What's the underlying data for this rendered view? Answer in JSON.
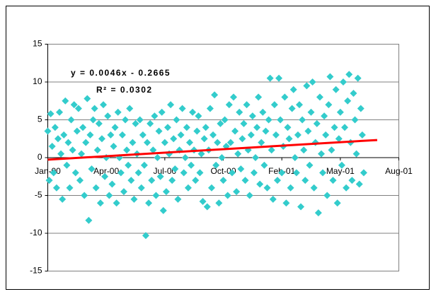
{
  "chart_data": {
    "type": "scatter",
    "equation": "y = 0.0046x - 0.2665",
    "r_squared": "R² = 0.0302",
    "xlim": [
      0,
      600
    ],
    "xticks": [
      {
        "value": 0,
        "label": "Jan-00"
      },
      {
        "value": 100,
        "label": "Apr-00"
      },
      {
        "value": 200,
        "label": "Jul-00"
      },
      {
        "value": 300,
        "label": "Oct-00"
      },
      {
        "value": 400,
        "label": "Feb-01"
      },
      {
        "value": 500,
        "label": "May-01"
      },
      {
        "value": 600,
        "label": "Aug-01"
      }
    ],
    "ylim": [
      -15,
      15
    ],
    "yticks": [
      -15,
      -10,
      -5,
      0,
      5,
      10,
      15
    ],
    "grid": true,
    "color": "#33cccc",
    "x": [
      0,
      2.5,
      5,
      7.5,
      10,
      12.5,
      15,
      17.5,
      20,
      22.5,
      25,
      27.5,
      30,
      32.5,
      35,
      37.5,
      40,
      42.5,
      45,
      47.5,
      50,
      52.5,
      55,
      57.5,
      60,
      62.5,
      65,
      67.5,
      70,
      72.5,
      75,
      77.5,
      80,
      82.5,
      85,
      87.5,
      90,
      92.5,
      95,
      97.5,
      100,
      102.5,
      105,
      107.5,
      110,
      112.5,
      115,
      117.5,
      120,
      122.5,
      125,
      127.5,
      130,
      132.5,
      135,
      137.5,
      140,
      142.5,
      145,
      147.5,
      150,
      152.5,
      155,
      157.5,
      160,
      162.5,
      165,
      167.5,
      170,
      172.5,
      175,
      177.5,
      180,
      182.5,
      185,
      187.5,
      190,
      192.5,
      195,
      197.5,
      200,
      202.5,
      205,
      207.5,
      210,
      212.5,
      215,
      217.5,
      220,
      222.5,
      225,
      227.5,
      230,
      232.5,
      235,
      237.5,
      240,
      242.5,
      245,
      247.5,
      250,
      252.5,
      255,
      257.5,
      260,
      262.5,
      265,
      267.5,
      270,
      272.5,
      275,
      277.5,
      280,
      282.5,
      285,
      287.5,
      290,
      292.5,
      295,
      297.5,
      300,
      302.5,
      305,
      307.5,
      310,
      312.5,
      315,
      317.5,
      320,
      322.5,
      325,
      327.5,
      330,
      332.5,
      335,
      337.5,
      340,
      342.5,
      345,
      347.5,
      350,
      352.5,
      355,
      357.5,
      360,
      362.5,
      365,
      367.5,
      370,
      372.5,
      375,
      377.5,
      380,
      382.5,
      385,
      387.5,
      390,
      392.5,
      395,
      397.5,
      400,
      402.5,
      405,
      407.5,
      410,
      412.5,
      415,
      417.5,
      420,
      422.5,
      425,
      427.5,
      430,
      432.5,
      435,
      437.5,
      440,
      442.5,
      445,
      447.5,
      450,
      452.5,
      455,
      457.5,
      460,
      462.5,
      465,
      467.5,
      470,
      472.5,
      475,
      477.5,
      480,
      482.5,
      485,
      487.5,
      490,
      492.5,
      495,
      497.5,
      500,
      502.5,
      505,
      507.5,
      510,
      512.5,
      515,
      517.5,
      520,
      522.5,
      525,
      527.5,
      530,
      532.5,
      535,
      537.5,
      540
    ],
    "values": [
      3.5,
      -3,
      5.8,
      1.5,
      -2,
      4,
      -4,
      2.5,
      6,
      0.5,
      -5.5,
      3,
      7.5,
      -1,
      2,
      -4,
      5,
      1,
      7,
      -2,
      3.5,
      6.5,
      -3,
      0.5,
      4,
      -5,
      2,
      7.8,
      -8.3,
      3,
      -1.5,
      5,
      6.5,
      -4,
      1,
      4.5,
      -6,
      2.5,
      7,
      -2.5,
      0,
      5.5,
      -5,
      3,
      -3.5,
      1.5,
      4,
      -6,
      6,
      0,
      -2,
      3,
      -4.5,
      5,
      1,
      -1,
      6.5,
      -3,
      2,
      -5.5,
      4.5,
      0.5,
      -2,
      5,
      -4,
      3,
      -1,
      -10.3,
      2,
      -6,
      4.5,
      -3,
      1,
      5.5,
      -5,
      0,
      3.5,
      -2.5,
      6,
      -7,
      2,
      -4.5,
      4,
      0.5,
      7,
      -3,
      2.5,
      -1.5,
      5,
      -5.5,
      1,
      3,
      6.5,
      -2,
      0,
      4,
      -4,
      2,
      -1,
      6,
      1,
      -3,
      3.5,
      5.5,
      -2,
      0.5,
      -5.8,
      2.5,
      4,
      -6.5,
      1,
      6.5,
      -4,
      3,
      8.3,
      -1,
      2,
      -6,
      4.5,
      0,
      -3,
      5,
      1.5,
      -5,
      7,
      2,
      -2,
      8,
      3.5,
      -4.5,
      0.5,
      6,
      -1.5,
      2.5,
      4.5,
      -3,
      7,
      1,
      -5,
      3,
      5.5,
      -2,
      0,
      4,
      8,
      -3.5,
      2,
      6,
      -1,
      3.5,
      -4,
      5,
      10.5,
      1,
      -5.5,
      7,
      3,
      -3,
      10.5,
      5,
      -2,
      1.5,
      8,
      -6,
      4,
      2.5,
      -4,
      6.5,
      9,
      0,
      -2,
      3,
      7,
      -6.5,
      5,
      1,
      -3,
      9.5,
      3.5,
      -1,
      6,
      10,
      -4,
      2,
      4.5,
      -7.3,
      8,
      0.5,
      -2,
      5.5,
      3,
      -5,
      7,
      10.7,
      1,
      -3,
      4,
      9,
      -6,
      2.5,
      6,
      -1,
      10,
      4,
      -4,
      7.5,
      11,
      2,
      -3,
      8.5,
      5,
      0.5,
      10.5,
      -3.5,
      6.5,
      3,
      -2
    ],
    "trendline": {
      "color": "#ff0000",
      "x": [
        0,
        563
      ],
      "values": [
        -0.27,
        2.33
      ]
    }
  }
}
